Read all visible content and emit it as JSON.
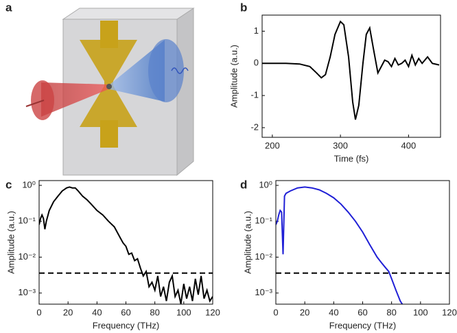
{
  "illustration": {
    "label": "a"
  },
  "chart_data": [
    {
      "type": "line",
      "label": "b",
      "xlabel": "Time (fs)",
      "ylabel": "Amplitude (a.u.)",
      "xlim": [
        185,
        447
      ],
      "xticks": [
        200,
        300,
        400
      ],
      "ylim": [
        -2.3,
        1.5
      ],
      "yticks": [
        -2,
        -1,
        0,
        1
      ],
      "series": [
        {
          "color": "#000000",
          "x": [
            185,
            220,
            240,
            255,
            265,
            272,
            278,
            285,
            292,
            300,
            305,
            312,
            318,
            322,
            327,
            333,
            338,
            343,
            348,
            355,
            360,
            365,
            370,
            375,
            380,
            385,
            390,
            395,
            400,
            405,
            410,
            415,
            420,
            428,
            435,
            445
          ],
          "values": [
            0,
            0,
            -0.02,
            -0.1,
            -0.3,
            -0.45,
            -0.35,
            0.2,
            0.9,
            1.3,
            1.2,
            0.2,
            -1.2,
            -1.75,
            -1.3,
            0,
            0.9,
            1.1,
            0.5,
            -0.3,
            -0.1,
            0.1,
            0.05,
            -0.1,
            0.15,
            -0.05,
            0,
            0.1,
            -0.1,
            0.25,
            -0.05,
            0.15,
            0,
            0.2,
            0,
            -0.05
          ]
        }
      ]
    },
    {
      "type": "line",
      "label": "c",
      "xlabel": "Frequency (THz)",
      "ylabel": "Amplitude (a.u.)",
      "log_y": true,
      "xlim": [
        0,
        120
      ],
      "xticks": [
        0,
        20,
        40,
        60,
        80,
        100,
        120
      ],
      "ylim": [
        0.00049,
        1.36
      ],
      "yticks": [
        {
          "value": 1,
          "label": "10⁰"
        },
        {
          "value": 0.1,
          "label": "10⁻¹"
        },
        {
          "value": 0.01,
          "label": "10⁻²"
        },
        {
          "value": 0.001,
          "label": "10⁻³"
        }
      ],
      "hline": 0.0036,
      "series": [
        {
          "color": "#000000",
          "x": [
            0,
            1,
            2,
            3,
            4,
            5,
            7,
            10,
            13,
            16,
            19,
            21,
            23,
            25,
            27,
            30,
            33,
            36,
            40,
            44,
            48,
            52,
            56,
            58,
            60,
            62,
            64,
            66,
            68,
            70,
            72,
            74,
            76,
            78,
            80,
            82,
            84,
            86,
            88,
            90,
            92,
            94,
            96,
            98,
            100,
            102,
            104,
            106,
            108,
            110,
            112,
            114,
            116,
            118,
            120
          ],
          "values": [
            0.08,
            0.12,
            0.15,
            0.12,
            0.06,
            0.1,
            0.2,
            0.35,
            0.5,
            0.7,
            0.85,
            0.9,
            0.85,
            0.85,
            0.7,
            0.5,
            0.4,
            0.3,
            0.2,
            0.15,
            0.1,
            0.07,
            0.035,
            0.025,
            0.02,
            0.012,
            0.013,
            0.008,
            0.009,
            0.005,
            0.003,
            0.004,
            0.0015,
            0.002,
            0.0012,
            0.003,
            0.0008,
            0.0015,
            0.0006,
            0.002,
            0.003,
            0.0008,
            0.0012,
            0.0005,
            0.0018,
            0.0007,
            0.0015,
            0.0006,
            0.0025,
            0.0009,
            0.003,
            0.0007,
            0.0012,
            0.0006,
            0.0008
          ]
        }
      ]
    },
    {
      "type": "line",
      "label": "d",
      "xlabel": "Frequency (THz)",
      "ylabel": "Amplitude (a.u.)",
      "log_y": true,
      "xlim": [
        0,
        120
      ],
      "xticks": [
        0,
        20,
        40,
        60,
        80,
        100,
        120
      ],
      "ylim": [
        0.00049,
        1.36
      ],
      "yticks": [
        {
          "value": 1,
          "label": "10⁰"
        },
        {
          "value": 0.1,
          "label": "10⁻¹"
        },
        {
          "value": 0.01,
          "label": "10⁻²"
        },
        {
          "value": 0.001,
          "label": "10⁻³"
        }
      ],
      "hline": 0.0036,
      "series": [
        {
          "color": "#1f1fd6",
          "x": [
            0,
            1,
            2,
            3,
            4,
            5,
            6,
            7,
            10,
            15,
            20,
            25,
            30,
            35,
            40,
            45,
            50,
            55,
            60,
            65,
            70,
            73,
            76,
            78,
            80,
            83,
            86,
            88
          ],
          "values": [
            0.08,
            0.1,
            0.15,
            0.2,
            0.18,
            0.012,
            0.5,
            0.6,
            0.7,
            0.85,
            0.9,
            0.85,
            0.75,
            0.6,
            0.45,
            0.3,
            0.18,
            0.1,
            0.05,
            0.022,
            0.01,
            0.007,
            0.005,
            0.004,
            0.0025,
            0.0012,
            0.0006,
            0.00045
          ]
        }
      ]
    }
  ]
}
